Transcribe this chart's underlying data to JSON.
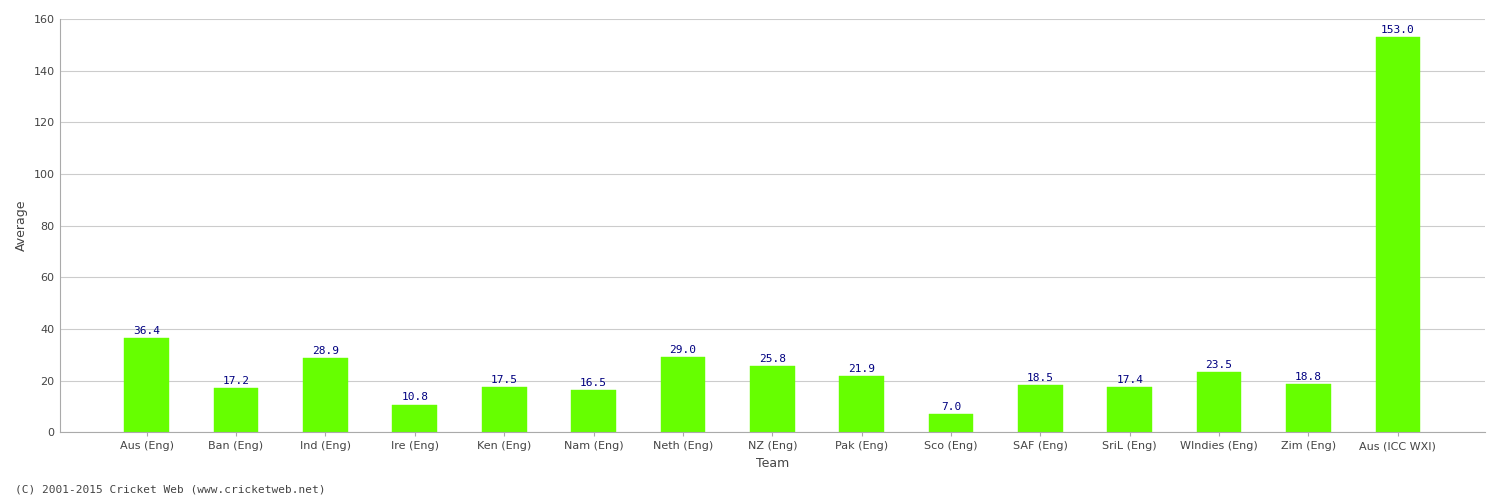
{
  "categories": [
    "Aus (Eng)",
    "Ban (Eng)",
    "Ind (Eng)",
    "Ire (Eng)",
    "Ken (Eng)",
    "Nam (Eng)",
    "Neth (Eng)",
    "NZ (Eng)",
    "Pak (Eng)",
    "Sco (Eng)",
    "SAF (Eng)",
    "SriL (Eng)",
    "WIndies (Eng)",
    "Zim (Eng)",
    "Aus (ICC WXI)"
  ],
  "values": [
    36.4,
    17.2,
    28.9,
    10.8,
    17.5,
    16.5,
    29.0,
    25.8,
    21.9,
    7.0,
    18.5,
    17.4,
    23.5,
    18.8,
    153.0
  ],
  "bar_color": "#66ff00",
  "bar_edge_color": "#66ff00",
  "value_color": "#000080",
  "ylabel": "Average",
  "xlabel": "Team",
  "ylim": [
    0,
    160
  ],
  "yticks": [
    0,
    20,
    40,
    60,
    80,
    100,
    120,
    140,
    160
  ],
  "grid_color": "#cccccc",
  "bg_color": "#ffffff",
  "footnote": "(C) 2001-2015 Cricket Web (www.cricketweb.net)",
  "label_fontsize": 9,
  "tick_fontsize": 8,
  "value_fontsize": 8,
  "footnote_fontsize": 8,
  "bar_width": 0.5
}
